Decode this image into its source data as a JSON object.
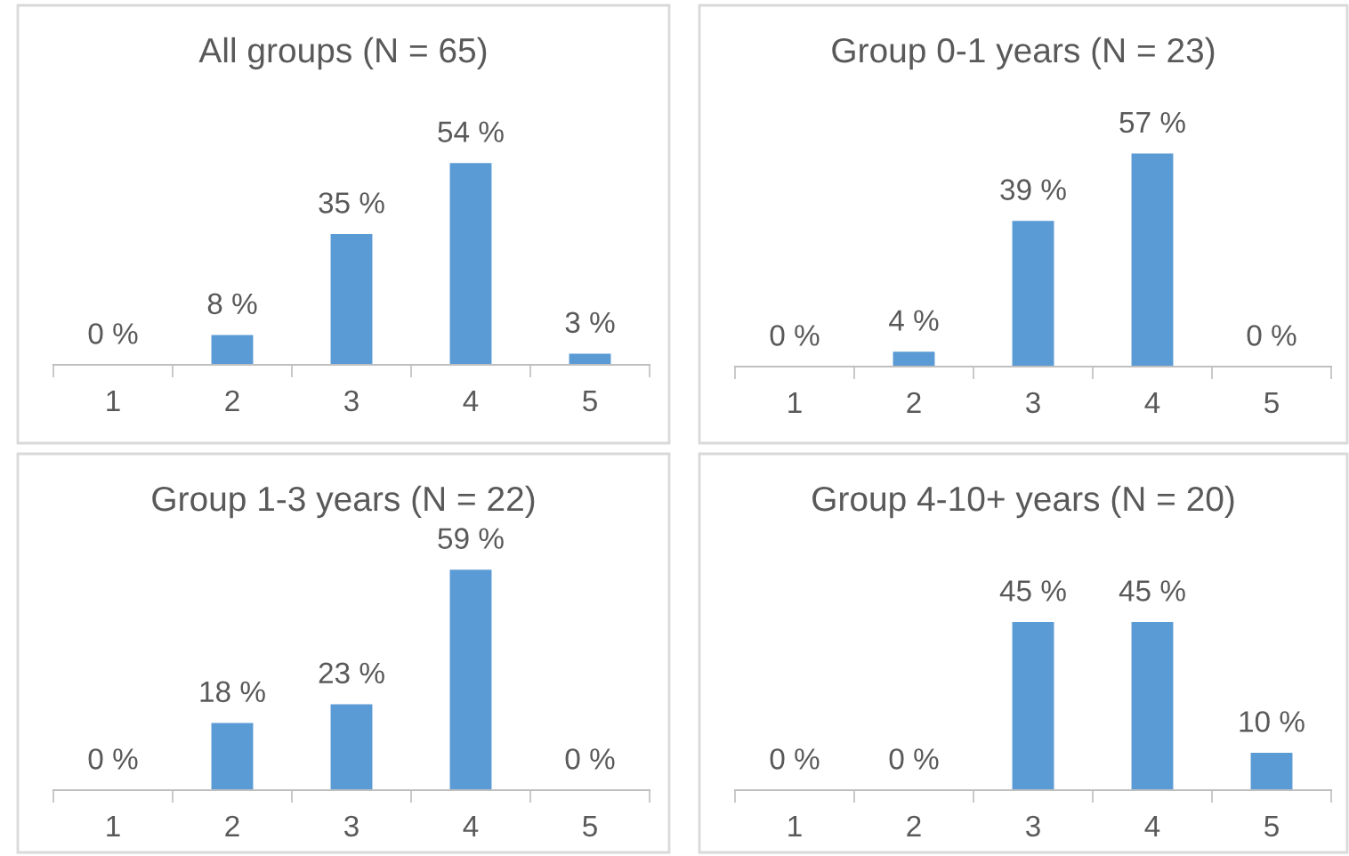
{
  "chart_data": [
    {
      "type": "bar",
      "title": "All groups (N = 65)",
      "categories": [
        "1",
        "2",
        "3",
        "4",
        "5"
      ],
      "color": "#5b9bd5",
      "values": [
        0,
        8,
        35,
        54,
        3
      ],
      "value_labels": [
        "0 %",
        "8 %",
        "35 %",
        "54 %",
        "3 %"
      ]
    },
    {
      "type": "bar",
      "title": "Group 0-1 years (N = 23)",
      "categories": [
        "1",
        "2",
        "3",
        "4",
        "5"
      ],
      "color": "#5b9bd5",
      "values": [
        0,
        4,
        39,
        57,
        0
      ],
      "value_labels": [
        "0 %",
        "4 %",
        "39 %",
        "57 %",
        "0 %"
      ]
    },
    {
      "type": "bar",
      "title": "Group 1-3 years (N = 22)",
      "categories": [
        "1",
        "2",
        "3",
        "4",
        "5"
      ],
      "color": "#5b9bd5",
      "values": [
        0,
        18,
        23,
        59,
        0
      ],
      "value_labels": [
        "0 %",
        "18 %",
        "23 %",
        "59 %",
        "0 %"
      ]
    },
    {
      "type": "bar",
      "title": "Group 4-10+ years (N = 20)",
      "categories": [
        "1",
        "2",
        "3",
        "4",
        "5"
      ],
      "color": "#5b9bd5",
      "values": [
        0,
        0,
        45,
        45,
        10
      ],
      "value_labels": [
        "0 %",
        "0 %",
        "45 %",
        "45 %",
        "10 %"
      ]
    }
  ]
}
